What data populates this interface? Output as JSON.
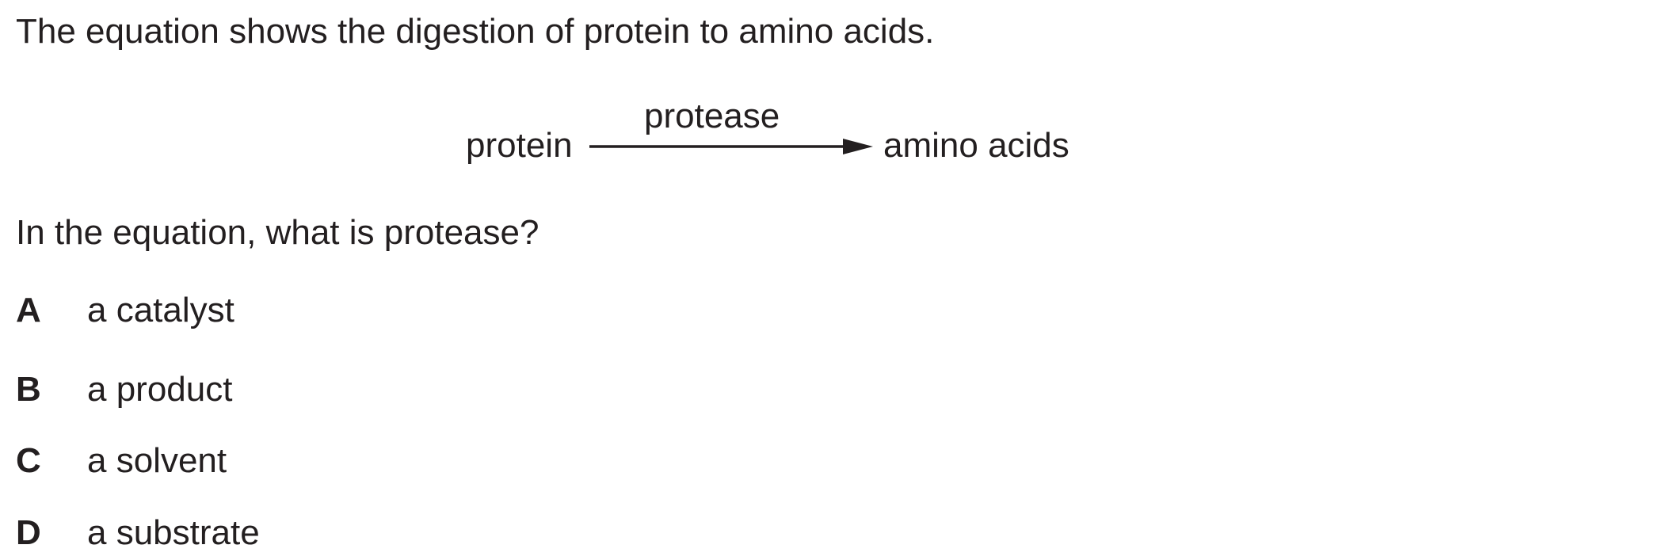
{
  "intro": "The equation shows the digestion of protein to amino acids.",
  "equation": {
    "reactant": "protein",
    "enzyme": "protease",
    "product": "amino acids"
  },
  "question": "In the equation, what is protease?",
  "options": [
    {
      "letter": "A",
      "text": "a catalyst"
    },
    {
      "letter": "B",
      "text": "a product"
    },
    {
      "letter": "C",
      "text": "a solvent"
    },
    {
      "letter": "D",
      "text": "a substrate"
    }
  ],
  "colors": {
    "text": "#231f20",
    "background": "#ffffff"
  }
}
